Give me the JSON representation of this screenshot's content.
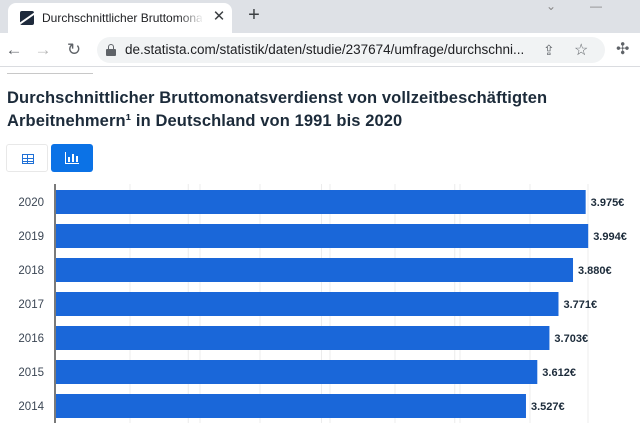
{
  "browser": {
    "tab_title": "Durchschnittlicher Bruttomonatsverdienst",
    "tab_close": "✕",
    "new_tab": "+",
    "url": "de.statista.com/statistik/daten/studie/237674/umfrage/durchschni..."
  },
  "page": {
    "title": "Durchschnittlicher Bruttomonatsverdienst von vollzeitbeschäftigten Arbeitnehmern¹ in Deutschland von 1991 bis 2020",
    "view_toggle": {
      "active": "chart"
    }
  },
  "colors": {
    "bar": "#1a67d9",
    "accent": "#0b72e6"
  },
  "chart_data": {
    "type": "bar",
    "orientation": "horizontal",
    "categories": [
      "2020",
      "2019",
      "2018",
      "2017",
      "2016",
      "2015",
      "2014"
    ],
    "values": [
      3975,
      3994,
      3880,
      3771,
      3703,
      3612,
      3527
    ],
    "value_labels": [
      "3.975€",
      "3.994€",
      "3.880€",
      "3.771€",
      "3.703€",
      "3.612€",
      "3.527€"
    ],
    "xlim": [
      0,
      4000
    ],
    "grid": true
  }
}
